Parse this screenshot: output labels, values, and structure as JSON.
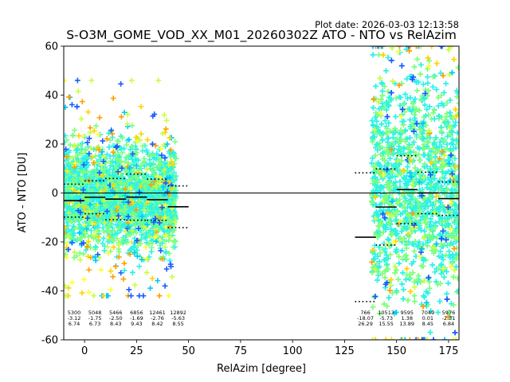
{
  "plot_date": "Plot date: 2026-03-03 12:13:58",
  "chart_data": {
    "type": "scatter",
    "title": "S-O3M_GOME_VOD_XX_M01_20260302Z ATO - NTO vs RelAzim",
    "xlabel": "RelAzim [degree]",
    "ylabel": "ATO - NTO [DU]",
    "xlim": [
      -10,
      180
    ],
    "ylim": [
      -60,
      60
    ],
    "xticks": [
      0,
      25,
      50,
      75,
      100,
      125,
      150,
      175
    ],
    "yticks": [
      -60,
      -40,
      -20,
      0,
      20,
      40,
      60
    ],
    "grid": false,
    "zero_line": 0,
    "point_colors": [
      "#2ef2e6",
      "#7dff7d",
      "#ffd400",
      "#c8ff40",
      "#1a5cff",
      "#00c8ff",
      "#ffa000",
      "#ffff30"
    ],
    "scatter_regions": [
      {
        "x_range": [
          -10,
          44
        ],
        "core_y": [
          -22,
          18
        ],
        "spread_y": [
          -42,
          46
        ]
      },
      {
        "x_range": [
          138,
          180
        ],
        "core_y": [
          -40,
          45
        ],
        "spread_y": [
          -60,
          60
        ]
      }
    ],
    "bins": [
      {
        "x_range": [
          -10,
          0
        ],
        "mean": -3.12,
        "std": 6.74,
        "n": 5300
      },
      {
        "x_range": [
          0,
          10
        ],
        "mean": -1.75,
        "std": 6.73,
        "n": 5048
      },
      {
        "x_range": [
          10,
          20
        ],
        "mean": -2.5,
        "std": 8.43,
        "n": 5466
      },
      {
        "x_range": [
          20,
          30
        ],
        "mean": -1.69,
        "std": 9.43,
        "n": 6856
      },
      {
        "x_range": [
          30,
          40
        ],
        "mean": -2.76,
        "std": 8.42,
        "n": 12461
      },
      {
        "x_range": [
          40,
          50
        ],
        "mean": -5.63,
        "std": 8.55,
        "n": 12892
      },
      {
        "x_range": [
          130,
          140
        ],
        "mean": -18.07,
        "std": 26.29,
        "n": 766
      },
      {
        "x_range": [
          140,
          150
        ],
        "mean": -5.73,
        "std": 15.55,
        "n": 10513
      },
      {
        "x_range": [
          150,
          160
        ],
        "mean": 1.38,
        "std": 13.89,
        "n": 9595
      },
      {
        "x_range": [
          160,
          170
        ],
        "mean": 0.01,
        "std": 8.45,
        "n": 7049
      },
      {
        "x_range": [
          170,
          180
        ],
        "mean": -2.31,
        "std": 6.84,
        "n": 5976
      }
    ],
    "stat_labels": [
      {
        "x": -5,
        "n": "5300",
        "mean": "-3.12",
        "std": "6.74"
      },
      {
        "x": 5,
        "n": "5048",
        "mean": "-1.75",
        "std": "6.73"
      },
      {
        "x": 15,
        "n": "5466",
        "mean": "-2.50",
        "std": "8.43"
      },
      {
        "x": 25,
        "n": "6856",
        "mean": "-1.69",
        "std": "9.43"
      },
      {
        "x": 35,
        "n": "12461",
        "mean": "-2.76",
        "std": "8.42"
      },
      {
        "x": 45,
        "n": "12892",
        "mean": "-5.63",
        "std": "8.55"
      },
      {
        "x": 135,
        "n": "766",
        "mean": "-18.07",
        "std": "26.29"
      },
      {
        "x": 145,
        "n": "10513",
        "mean": "-5.73",
        "std": "15.55"
      },
      {
        "x": 155,
        "n": "9595",
        "mean": "1.38",
        "std": "13.89"
      },
      {
        "x": 165,
        "n": "7049",
        "mean": "0.01",
        "std": "8.45"
      },
      {
        "x": 175,
        "n": "5976",
        "mean": "-2.31",
        "std": "6.84"
      }
    ]
  }
}
